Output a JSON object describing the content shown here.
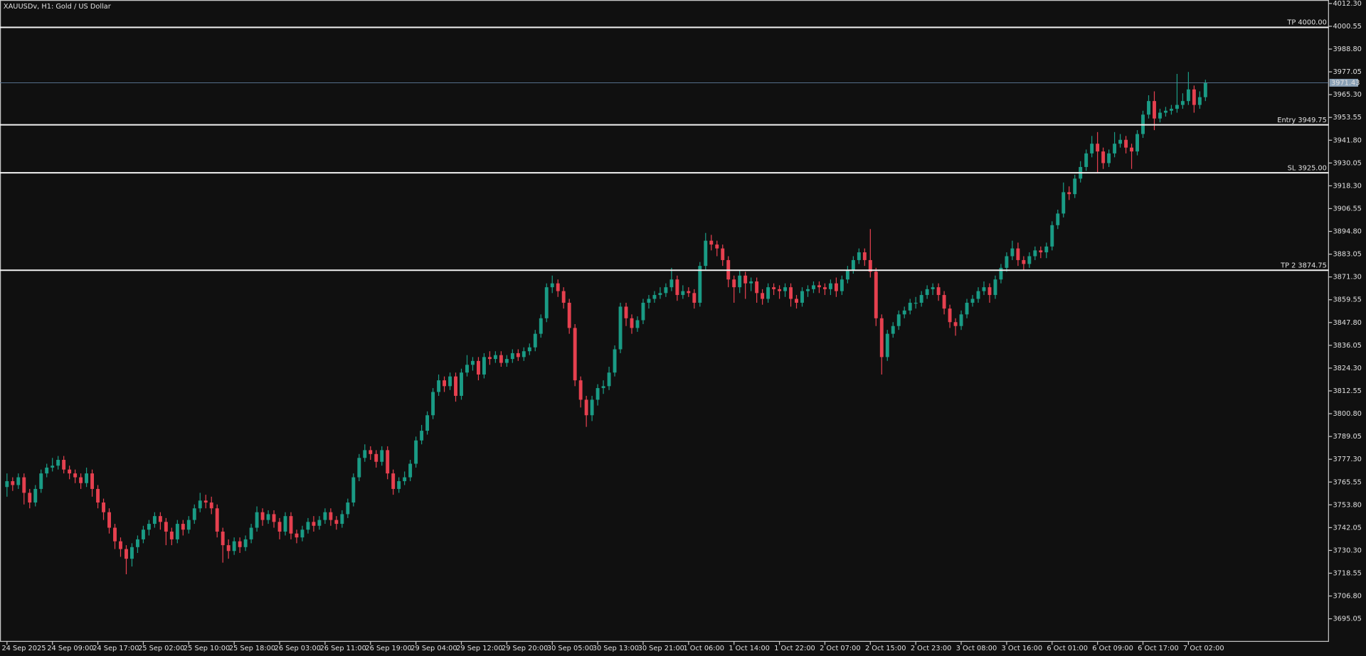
{
  "chart_data": {
    "type": "candlestick",
    "title": "XAUUSDv, H1:  Gold / US Dollar",
    "up_color": "#1a9b85",
    "down_color": "#e6404f",
    "categories": [
      "24 Sep 2025",
      null,
      null,
      null,
      null,
      null,
      null,
      null,
      "24 Sep 09:00",
      null,
      null,
      null,
      null,
      null,
      null,
      null,
      "24 Sep 17:00",
      null,
      null,
      null,
      null,
      null,
      null,
      null,
      "25 Sep 02:00",
      null,
      null,
      null,
      null,
      null,
      null,
      null,
      "25 Sep 10:00",
      null,
      null,
      null,
      null,
      null,
      null,
      null,
      "25 Sep 18:00",
      null,
      null,
      null,
      null,
      null,
      null,
      null,
      "26 Sep 03:00",
      null,
      null,
      null,
      null,
      null,
      null,
      null,
      "26 Sep 11:00",
      null,
      null,
      null,
      null,
      null,
      null,
      null,
      "26 Sep 19:00",
      null,
      null,
      null,
      null,
      null,
      null,
      null,
      "29 Sep 04:00",
      null,
      null,
      null,
      null,
      null,
      null,
      null,
      "29 Sep 12:00",
      null,
      null,
      null,
      null,
      null,
      null,
      null,
      "29 Sep 20:00",
      null,
      null,
      null,
      null,
      null,
      null,
      null,
      "30 Sep 05:00",
      null,
      null,
      null,
      null,
      null,
      null,
      null,
      "30 Sep 13:00",
      null,
      null,
      null,
      null,
      null,
      null,
      null,
      "30 Sep 21:00",
      null,
      null,
      null,
      null,
      null,
      null,
      null,
      "1 Oct 06:00",
      null,
      null,
      null,
      null,
      null,
      null,
      null,
      "1 Oct 14:00",
      null,
      null,
      null,
      null,
      null,
      null,
      null,
      "1 Oct 22:00",
      null,
      null,
      null,
      null,
      null,
      null,
      null,
      "2 Oct 07:00",
      null,
      null,
      null,
      null,
      null,
      null,
      null,
      "2 Oct 15:00",
      null,
      null,
      null,
      null,
      null,
      null,
      null,
      "2 Oct 23:00",
      null,
      null,
      null,
      null,
      null,
      null,
      null,
      "3 Oct 08:00",
      null,
      null,
      null,
      null,
      null,
      null,
      null,
      "3 Oct 16:00",
      null,
      null,
      null,
      null,
      null,
      null,
      null,
      "6 Oct 01:00",
      null,
      null,
      null,
      null,
      null,
      null,
      null,
      "6 Oct 09:00",
      null,
      null,
      null,
      null,
      null,
      null,
      null,
      "6 Oct 17:00",
      null,
      null,
      null,
      null,
      null,
      null,
      null,
      "7 Oct 02:00",
      null,
      null,
      null
    ],
    "open": [
      3763,
      3766,
      3764,
      3768,
      3760,
      3755,
      3762,
      3770,
      3773,
      3774,
      3777,
      3772,
      3770,
      3768,
      3765,
      3770,
      3762,
      3755,
      3750,
      3742,
      3735,
      3731,
      3726,
      3732,
      3736,
      3741,
      3744,
      3748,
      3745,
      3740,
      3736,
      3744,
      3741,
      3746,
      3752,
      3756,
      3755,
      3752,
      3740,
      3733,
      3730,
      3735,
      3732,
      3736,
      3742,
      3750,
      3746,
      3749,
      3745,
      3740,
      3748,
      3739,
      3737,
      3741,
      3745,
      3743,
      3746,
      3750,
      3746,
      3744,
      3749,
      3755,
      3768,
      3778,
      3782,
      3780,
      3776,
      3782,
      3770,
      3762,
      3766,
      3768,
      3775,
      3787,
      3792,
      3800,
      3812,
      3818,
      3815,
      3820,
      3810,
      3822,
      3826,
      3828,
      3821,
      3830,
      3829,
      3831,
      3827,
      3829,
      3832,
      3830,
      3833,
      3835,
      3842,
      3850,
      3866,
      3868,
      3864,
      3858,
      3845,
      3818,
      3808,
      3800,
      3808,
      3814,
      3815,
      3822,
      3834,
      3856,
      3850,
      3845,
      3849,
      3858,
      3860,
      3862,
      3863,
      3866,
      3870,
      3862,
      3864,
      3863,
      3858,
      3877,
      3890,
      3888,
      3886,
      3880,
      3870,
      3866,
      3872,
      3868,
      3869,
      3863,
      3860,
      3866,
      3865,
      3864,
      3866,
      3860,
      3858,
      3864,
      3865,
      3867,
      3866,
      3865,
      3868,
      3864,
      3870,
      3875,
      3880,
      3884,
      3880,
      3874,
      3850,
      3830,
      3842,
      3846,
      3852,
      3854,
      3858,
      3858,
      3862,
      3865,
      3866,
      3862,
      3855,
      3848,
      3846,
      3852,
      3858,
      3860,
      3864,
      3866,
      3862,
      3870,
      3876,
      3882,
      3886,
      3880,
      3878,
      3882,
      3885,
      3884,
      3887,
      3898,
      3904,
      3915,
      3914,
      3922,
      3928,
      3935,
      3940,
      3936,
      3930,
      3935,
      3940,
      3942,
      3938,
      3936,
      3945,
      3955,
      3962,
      3953,
      3956,
      3957,
      3958,
      3960,
      3962,
      3968,
      3960,
      3964
    ],
    "high": [
      3770,
      3768,
      3770,
      3770,
      3762,
      3764,
      3772,
      3775,
      3778,
      3779,
      3779,
      3774,
      3772,
      3770,
      3773,
      3772,
      3764,
      3757,
      3752,
      3744,
      3737,
      3733,
      3734,
      3738,
      3743,
      3746,
      3750,
      3750,
      3747,
      3742,
      3746,
      3746,
      3748,
      3754,
      3760,
      3759,
      3758,
      3754,
      3742,
      3736,
      3737,
      3737,
      3738,
      3744,
      3753,
      3752,
      3751,
      3751,
      3747,
      3750,
      3750,
      3741,
      3743,
      3747,
      3748,
      3748,
      3752,
      3752,
      3748,
      3751,
      3757,
      3770,
      3780,
      3785,
      3784,
      3782,
      3784,
      3784,
      3772,
      3768,
      3771,
      3777,
      3789,
      3795,
      3802,
      3814,
      3821,
      3820,
      3822,
      3822,
      3824,
      3831,
      3830,
      3830,
      3832,
      3833,
      3833,
      3833,
      3831,
      3834,
      3834,
      3835,
      3837,
      3844,
      3852,
      3868,
      3872,
      3870,
      3866,
      3860,
      3847,
      3820,
      3810,
      3810,
      3816,
      3818,
      3825,
      3836,
      3858,
      3858,
      3852,
      3851,
      3860,
      3862,
      3864,
      3866,
      3868,
      3876,
      3872,
      3867,
      3866,
      3865,
      3879,
      3894,
      3893,
      3890,
      3888,
      3882,
      3872,
      3875,
      3874,
      3871,
      3871,
      3865,
      3868,
      3868,
      3867,
      3868,
      3868,
      3862,
      3866,
      3867,
      3869,
      3869,
      3868,
      3870,
      3871,
      3872,
      3877,
      3882,
      3886,
      3886,
      3896,
      3876,
      3852,
      3844,
      3848,
      3854,
      3856,
      3860,
      3861,
      3864,
      3867,
      3868,
      3868,
      3864,
      3857,
      3850,
      3854,
      3860,
      3862,
      3866,
      3869,
      3868,
      3872,
      3878,
      3884,
      3890,
      3889,
      3882,
      3884,
      3887,
      3887,
      3889,
      3900,
      3906,
      3920,
      3918,
      3924,
      3931,
      3937,
      3944,
      3946,
      3938,
      3937,
      3946,
      3945,
      3944,
      3940,
      3947,
      3957,
      3965,
      3967,
      3958,
      3959,
      3960,
      3976,
      3966,
      3977,
      3970,
      3967,
      3973
    ],
    "low": [
      3758,
      3761,
      3762,
      3754,
      3752,
      3753,
      3760,
      3768,
      3771,
      3772,
      3770,
      3767,
      3765,
      3762,
      3763,
      3758,
      3752,
      3746,
      3739,
      3731,
      3727,
      3718,
      3722,
      3729,
      3734,
      3738,
      3742,
      3741,
      3733,
      3733,
      3734,
      3738,
      3739,
      3744,
      3750,
      3752,
      3749,
      3737,
      3724,
      3726,
      3728,
      3729,
      3730,
      3734,
      3740,
      3743,
      3744,
      3742,
      3736,
      3738,
      3736,
      3734,
      3735,
      3739,
      3740,
      3741,
      3744,
      3743,
      3741,
      3742,
      3747,
      3753,
      3766,
      3776,
      3777,
      3773,
      3774,
      3767,
      3759,
      3760,
      3764,
      3766,
      3773,
      3785,
      3790,
      3798,
      3810,
      3812,
      3813,
      3807,
      3808,
      3820,
      3823,
      3818,
      3819,
      3826,
      3827,
      3825,
      3825,
      3827,
      3828,
      3828,
      3831,
      3833,
      3840,
      3848,
      3863,
      3861,
      3855,
      3842,
      3815,
      3804,
      3794,
      3797,
      3805,
      3811,
      3813,
      3820,
      3832,
      3846,
      3842,
      3843,
      3847,
      3855,
      3858,
      3860,
      3861,
      3864,
      3859,
      3860,
      3861,
      3855,
      3856,
      3875,
      3885,
      3882,
      3877,
      3866,
      3858,
      3863,
      3860,
      3864,
      3858,
      3857,
      3858,
      3862,
      3860,
      3861,
      3856,
      3855,
      3856,
      3861,
      3863,
      3863,
      3862,
      3862,
      3861,
      3862,
      3868,
      3873,
      3878,
      3877,
      3871,
      3846,
      3821,
      3828,
      3840,
      3844,
      3850,
      3852,
      3855,
      3856,
      3860,
      3862,
      3859,
      3852,
      3845,
      3841,
      3844,
      3850,
      3856,
      3858,
      3862,
      3858,
      3860,
      3868,
      3874,
      3880,
      3877,
      3875,
      3876,
      3880,
      3881,
      3881,
      3885,
      3896,
      3902,
      3911,
      3912,
      3920,
      3926,
      3933,
      3925,
      3927,
      3928,
      3933,
      3938,
      3935,
      3927,
      3934,
      3943,
      3953,
      3947,
      3951,
      3954,
      3955,
      3956,
      3958,
      3960,
      3956,
      3958,
      3962
    ],
    "close": [
      3766,
      3764,
      3768,
      3760,
      3755,
      3762,
      3770,
      3773,
      3774,
      3777,
      3772,
      3770,
      3768,
      3765,
      3770,
      3762,
      3755,
      3750,
      3742,
      3735,
      3731,
      3726,
      3732,
      3736,
      3741,
      3744,
      3748,
      3745,
      3740,
      3736,
      3744,
      3741,
      3746,
      3752,
      3756,
      3755,
      3752,
      3740,
      3733,
      3730,
      3735,
      3732,
      3736,
      3742,
      3750,
      3746,
      3749,
      3745,
      3740,
      3748,
      3739,
      3737,
      3741,
      3745,
      3743,
      3746,
      3750,
      3746,
      3744,
      3749,
      3755,
      3768,
      3778,
      3782,
      3780,
      3776,
      3782,
      3770,
      3762,
      3766,
      3768,
      3775,
      3787,
      3792,
      3800,
      3812,
      3818,
      3815,
      3820,
      3810,
      3822,
      3826,
      3828,
      3821,
      3830,
      3829,
      3831,
      3827,
      3829,
      3832,
      3830,
      3833,
      3835,
      3842,
      3850,
      3866,
      3868,
      3864,
      3858,
      3845,
      3818,
      3808,
      3800,
      3808,
      3814,
      3815,
      3822,
      3834,
      3856,
      3850,
      3845,
      3849,
      3858,
      3860,
      3862,
      3863,
      3866,
      3870,
      3862,
      3864,
      3863,
      3858,
      3877,
      3890,
      3888,
      3886,
      3880,
      3870,
      3866,
      3872,
      3868,
      3869,
      3863,
      3860,
      3866,
      3865,
      3864,
      3866,
      3860,
      3858,
      3864,
      3865,
      3867,
      3866,
      3865,
      3868,
      3864,
      3870,
      3875,
      3880,
      3884,
      3880,
      3874,
      3850,
      3830,
      3842,
      3846,
      3852,
      3854,
      3858,
      3858,
      3862,
      3865,
      3866,
      3862,
      3855,
      3848,
      3846,
      3852,
      3858,
      3860,
      3864,
      3866,
      3862,
      3870,
      3876,
      3882,
      3886,
      3880,
      3878,
      3882,
      3885,
      3884,
      3887,
      3898,
      3904,
      3915,
      3914,
      3922,
      3928,
      3935,
      3940,
      3936,
      3930,
      3935,
      3940,
      3942,
      3938,
      3936,
      3945,
      3955,
      3962,
      3953,
      3956,
      3957,
      3958,
      3960,
      3962,
      3968,
      3960,
      3964,
      3971.43
    ],
    "ylim": [
      3683.4,
      4014.1
    ],
    "yticks": [
      {
        "value": 4012.3,
        "label": "4012.30"
      },
      4000.55,
      {
        "value": 3988.8,
        "label": "3988.80"
      },
      3977.05,
      {
        "value": 3965.3,
        "label": "3965.30"
      },
      3953.55,
      {
        "value": 3941.8,
        "label": "3941.80"
      },
      3930.05,
      {
        "value": 3918.3,
        "label": "3918.30"
      },
      3906.55,
      {
        "value": 3894.8,
        "label": "3894.80"
      },
      3883.05,
      {
        "value": 3871.3,
        "label": "3871.30"
      },
      3859.55,
      {
        "value": 3847.8,
        "label": "3847.80"
      },
      3836.05,
      {
        "value": 3824.3,
        "label": "3824.30"
      },
      3812.55,
      {
        "value": 3800.8,
        "label": "3800.80"
      },
      3789.05,
      {
        "value": 3777.3,
        "label": "3777.30"
      },
      3765.55,
      {
        "value": 3753.8,
        "label": "3753.80"
      },
      3742.05,
      {
        "value": 3730.3,
        "label": "3730.30"
      },
      3718.55,
      {
        "value": 3706.8,
        "label": "3706.80"
      },
      3695.05
    ],
    "levels": [
      {
        "label": "TP 4000.00",
        "value": 4000
      },
      {
        "label": "Entry 3949.75",
        "value": 3949.75
      },
      {
        "label": "SL 3925.00",
        "value": 3925
      },
      {
        "label": "TP 2 3874.75",
        "value": 3874.75
      }
    ],
    "last_price": 3971.43
  }
}
